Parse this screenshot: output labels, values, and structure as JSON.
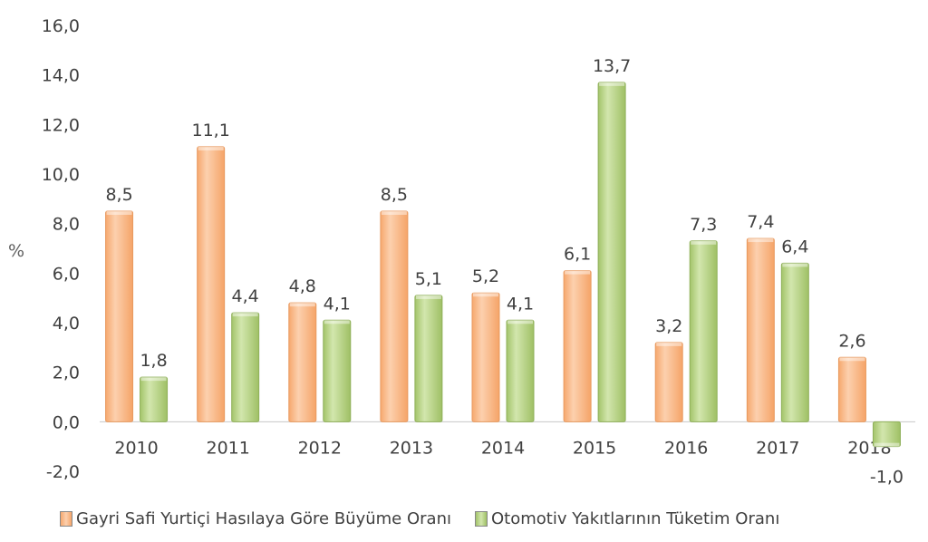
{
  "chart_data": {
    "type": "bar",
    "categories": [
      "2010",
      "2011",
      "2012",
      "2013",
      "2014",
      "2015",
      "2016",
      "2017",
      "2018"
    ],
    "series": [
      {
        "name": "Gayri Safi Yurtiçi Hasılaya Göre Büyüme Oranı",
        "values": [
          8.5,
          11.1,
          4.8,
          8.5,
          5.2,
          6.1,
          3.2,
          7.4,
          2.6
        ]
      },
      {
        "name": "Otomotiv Yakıtlarının Tüketim Oranı",
        "values": [
          1.8,
          4.4,
          4.1,
          5.1,
          4.1,
          13.7,
          7.3,
          6.4,
          -1.0
        ]
      }
    ],
    "ylabel": "%",
    "ylim": [
      -2,
      16
    ],
    "yticks": [
      "-2,0",
      "0,0",
      "2,0",
      "4,0",
      "6,0",
      "8,0",
      "10,0",
      "12,0",
      "14,0",
      "16,0"
    ],
    "data_labels": [
      [
        "8,5",
        "11,1",
        "4,8",
        "8,5",
        "5,2",
        "6,1",
        "3,2",
        "7,4",
        "2,6"
      ],
      [
        "1,8",
        "4,4",
        "4,1",
        "5,1",
        "4,1",
        "13,7",
        "7,3",
        "6,4",
        "-1,0"
      ]
    ],
    "grid": false,
    "legend_position": "bottom",
    "colors": {
      "series1": "#f9b98a",
      "series1_edge": "#e89a60",
      "series2": "#b9d38a",
      "series2_edge": "#8fb05a"
    }
  }
}
